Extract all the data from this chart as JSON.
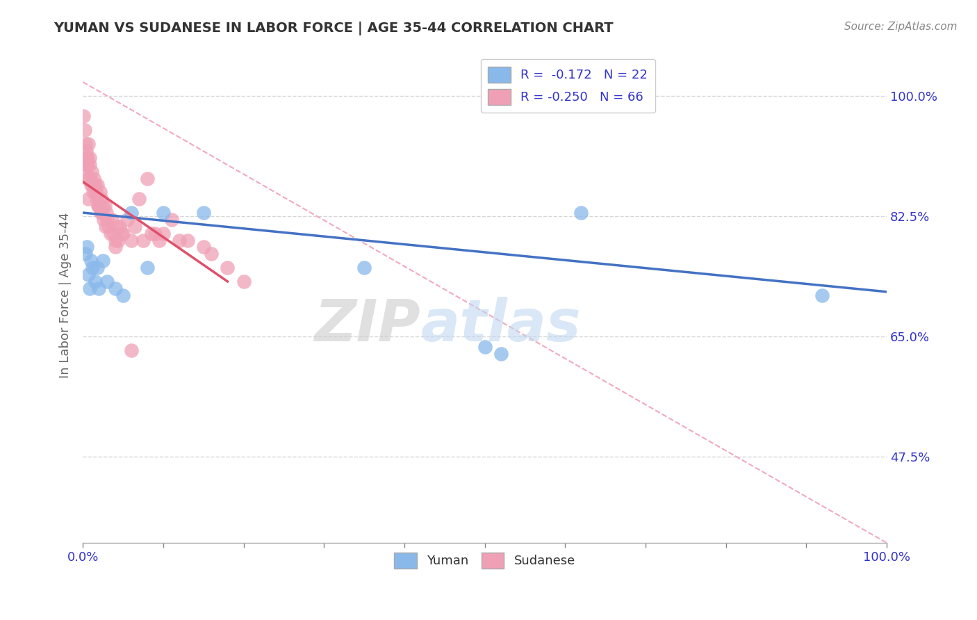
{
  "title": "YUMAN VS SUDANESE IN LABOR FORCE | AGE 35-44 CORRELATION CHART",
  "source": "Source: ZipAtlas.com",
  "ylabel": "In Labor Force | Age 35-44",
  "yuman_color": "#89B8EA",
  "sudanese_color": "#F0A0B5",
  "yuman_R": -0.172,
  "yuman_N": 22,
  "sudanese_R": -0.25,
  "sudanese_N": 66,
  "xlim": [
    0.0,
    1.0
  ],
  "ylim": [
    0.35,
    1.07
  ],
  "yticks": [
    0.475,
    0.65,
    0.825,
    1.0
  ],
  "ytick_labels": [
    "47.5%",
    "65.0%",
    "82.5%",
    "100.0%"
  ],
  "xtick_labels_ends": [
    "0.0%",
    "100.0%"
  ],
  "yuman_x": [
    0.003,
    0.005,
    0.007,
    0.008,
    0.01,
    0.012,
    0.015,
    0.018,
    0.02,
    0.025,
    0.03,
    0.04,
    0.05,
    0.06,
    0.08,
    0.1,
    0.15,
    0.35,
    0.5,
    0.52,
    0.62,
    0.92
  ],
  "yuman_y": [
    0.77,
    0.78,
    0.74,
    0.72,
    0.76,
    0.75,
    0.73,
    0.75,
    0.72,
    0.76,
    0.73,
    0.72,
    0.71,
    0.83,
    0.75,
    0.83,
    0.83,
    0.75,
    0.635,
    0.625,
    0.83,
    0.71
  ],
  "sudanese_x": [
    0.003,
    0.004,
    0.005,
    0.006,
    0.007,
    0.008,
    0.009,
    0.01,
    0.011,
    0.012,
    0.013,
    0.014,
    0.015,
    0.016,
    0.017,
    0.018,
    0.019,
    0.02,
    0.021,
    0.022,
    0.023,
    0.024,
    0.025,
    0.026,
    0.027,
    0.028,
    0.029,
    0.03,
    0.032,
    0.034,
    0.036,
    0.038,
    0.04,
    0.042,
    0.044,
    0.046,
    0.048,
    0.05,
    0.055,
    0.06,
    0.065,
    0.07,
    0.075,
    0.08,
    0.085,
    0.09,
    0.095,
    0.1,
    0.11,
    0.12,
    0.13,
    0.15,
    0.16,
    0.18,
    0.2,
    0.001,
    0.002,
    0.004,
    0.006,
    0.008,
    0.003,
    0.005,
    0.007,
    0.02,
    0.04,
    0.06
  ],
  "sudanese_y": [
    0.89,
    0.9,
    0.91,
    0.88,
    0.93,
    0.9,
    0.88,
    0.87,
    0.89,
    0.87,
    0.86,
    0.88,
    0.87,
    0.86,
    0.85,
    0.87,
    0.84,
    0.84,
    0.86,
    0.83,
    0.85,
    0.83,
    0.84,
    0.82,
    0.84,
    0.81,
    0.83,
    0.82,
    0.81,
    0.8,
    0.82,
    0.8,
    0.79,
    0.81,
    0.79,
    0.81,
    0.8,
    0.8,
    0.82,
    0.79,
    0.81,
    0.85,
    0.79,
    0.88,
    0.8,
    0.8,
    0.79,
    0.8,
    0.82,
    0.79,
    0.79,
    0.78,
    0.77,
    0.75,
    0.73,
    0.97,
    0.95,
    0.92,
    0.9,
    0.91,
    0.93,
    0.91,
    0.85,
    0.84,
    0.78,
    0.63
  ],
  "yuman_line_x": [
    0.0,
    1.0
  ],
  "yuman_line_y": [
    0.83,
    0.715
  ],
  "sudanese_line_x": [
    0.0,
    0.18
  ],
  "sudanese_line_y": [
    0.875,
    0.73
  ],
  "diag_line_x": [
    0.0,
    1.0
  ],
  "diag_line_y": [
    1.02,
    0.35
  ],
  "watermark_top": "ZIP",
  "watermark_bottom": "atlas",
  "title_color": "#333333",
  "axis_label_color": "#666666",
  "tick_color": "#3333CC",
  "grid_color": "#CCCCCC",
  "source_color": "#888888",
  "blue_line_color": "#4472C4",
  "pink_line_color": "#E0506A",
  "diag_line_color": "#F0A0B5"
}
